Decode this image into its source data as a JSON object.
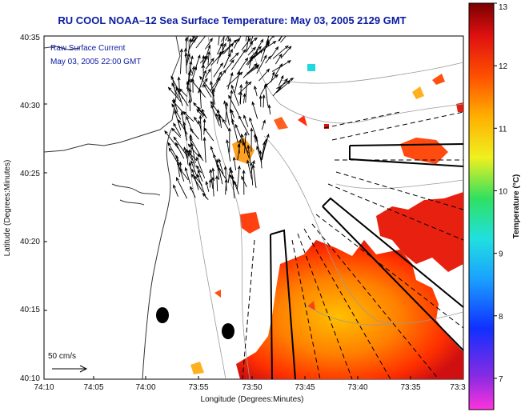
{
  "title": "RU COOL  NOAA–12  Sea Surface Temperature:  May 03, 2005 2129 GMT",
  "inset": {
    "line1": "Raw Surface Current",
    "line2": "May 03, 2005 22:00 GMT"
  },
  "x_axis": {
    "label": "Longitude (Degrees:Minutes)",
    "ticks": [
      "74:10",
      "74:05",
      "74:00",
      "73:55",
      "73:50",
      "73:45",
      "73:40",
      "73:35",
      "73:3"
    ]
  },
  "y_axis": {
    "label": "Latitude (Degrees:Minutes)",
    "ticks": [
      "40:35",
      "40:30",
      "40:25",
      "40:20",
      "40:15",
      "40:10"
    ]
  },
  "scale": {
    "label": "50 cm/s"
  },
  "colorbar": {
    "label": "Temperature (°C)",
    "ticks": [
      "13",
      "12",
      "11",
      "10",
      "9",
      "8",
      "7"
    ],
    "min": 6.5,
    "max": 13,
    "colors": [
      "#ff33dd",
      "#8a2be2",
      "#1030ff",
      "#1aa0ff",
      "#20e0e0",
      "#30e060",
      "#f0f020",
      "#ffb000",
      "#ff5000",
      "#e01010",
      "#7a0000"
    ]
  },
  "map_colors": {
    "land_background": "#ffffff",
    "contour": "#9a9a9a",
    "coast": "#333333",
    "vector": "#000000",
    "sector": "#000000"
  }
}
